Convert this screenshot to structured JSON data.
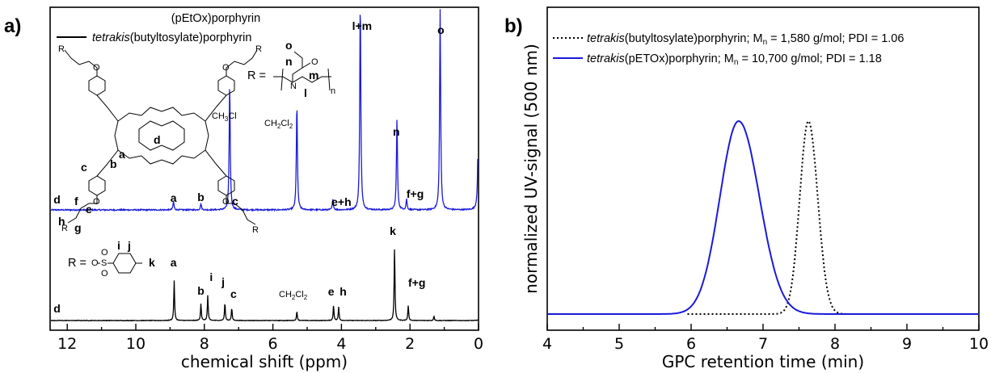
{
  "chart_data": [
    {
      "panel": "a)",
      "type": "line",
      "xlabel": "chemical shift (ppm)",
      "xlim": [
        12.5,
        0
      ],
      "x_ticks": [
        "12",
        "10",
        "8",
        "6",
        "4",
        "2",
        "0"
      ],
      "x_tick_values": [
        12,
        10,
        8,
        6,
        4,
        2,
        0
      ],
      "legend": [
        "(pEtOx)porphyrin",
        "tetrakis(butyltosylate)porphyrin"
      ],
      "series": [
        {
          "name": "(pEtOx)porphyrin",
          "color": "#1a1adb",
          "peaks": [
            {
              "ppm": 8.9,
              "height": 0.04,
              "label": "a"
            },
            {
              "ppm": 8.1,
              "height": 0.03,
              "label": "b"
            },
            {
              "ppm": 7.26,
              "height": 0.6,
              "label": "CH3Cl"
            },
            {
              "ppm": 5.3,
              "height": 0.51,
              "label": "CH2Cl2"
            },
            {
              "ppm": 4.25,
              "height": 0.05,
              "label": "e+h"
            },
            {
              "ppm": 3.45,
              "height": 1.0,
              "label": "l+m"
            },
            {
              "ppm": 2.38,
              "height": 0.43,
              "label": "n"
            },
            {
              "ppm": 2.1,
              "height": 0.05,
              "label": "f+g"
            },
            {
              "ppm": 1.12,
              "height": 0.95,
              "label": "o"
            },
            {
              "ppm": 0.0,
              "height": 0.65,
              "label": ""
            }
          ],
          "labels": [
            {
              "text": "d",
              "ppm": 12.3
            },
            {
              "text": "a",
              "ppm": 8.9
            },
            {
              "text": "b",
              "ppm": 8.1
            },
            {
              "text": "c",
              "ppm": 7.1
            },
            {
              "text": "e+h",
              "ppm": 4.0
            },
            {
              "text": "l+m",
              "ppm": 3.4
            },
            {
              "text": "n",
              "ppm": 2.4
            },
            {
              "text": "f+g",
              "ppm": 1.85
            },
            {
              "text": "o",
              "ppm": 1.1
            }
          ]
        },
        {
          "name": "tetrakis(butyltosylate)porphyrin",
          "color": "#000000",
          "peaks": [
            {
              "ppm": 8.88,
              "height": 0.44,
              "label": "a"
            },
            {
              "ppm": 8.1,
              "height": 0.19,
              "label": "b"
            },
            {
              "ppm": 7.9,
              "height": 0.28,
              "label": "i"
            },
            {
              "ppm": 7.4,
              "height": 0.2,
              "label": "j"
            },
            {
              "ppm": 7.2,
              "height": 0.14,
              "label": "c"
            },
            {
              "ppm": 5.3,
              "height": 0.1,
              "label": "CH2Cl2"
            },
            {
              "ppm": 4.23,
              "height": 0.17,
              "label": "e"
            },
            {
              "ppm": 4.08,
              "height": 0.15,
              "label": "h"
            },
            {
              "ppm": 2.45,
              "height": 0.82,
              "label": "k"
            },
            {
              "ppm": 2.05,
              "height": 0.17,
              "label": "f+g"
            },
            {
              "ppm": 1.3,
              "height": 0.05,
              "label": ""
            },
            {
              "ppm": 0.0,
              "height": 0.04,
              "label": ""
            }
          ],
          "labels": [
            {
              "text": "d",
              "ppm": 12.3
            },
            {
              "text": "a",
              "ppm": 8.9
            },
            {
              "text": "b",
              "ppm": 8.1
            },
            {
              "text": "i",
              "ppm": 7.8
            },
            {
              "text": "j",
              "ppm": 7.45
            },
            {
              "text": "c",
              "ppm": 7.15
            },
            {
              "text": "e",
              "ppm": 4.3
            },
            {
              "text": "h",
              "ppm": 3.95
            },
            {
              "text": "k",
              "ppm": 2.5
            },
            {
              "text": "f+g",
              "ppm": 1.8
            }
          ]
        }
      ],
      "annotations": {
        "r_blue": "R =",
        "r_black": "R =",
        "chcl3": "CH",
        "chcl3_sub": "3",
        "chcl3_tail": "Cl",
        "ch2cl2_a": "CH",
        "ch2cl2_sub1": "2",
        "ch2cl2_mid": "Cl",
        "ch2cl2_sub2": "2",
        "pox_o": "o",
        "pox_n": "n",
        "pox_m": "m",
        "pox_l": "l",
        "pox_n_sub": "n",
        "tos_i": "i",
        "tos_j": "j",
        "tos_k": "k",
        "porph_a": "a",
        "porph_b": "b",
        "porph_c": "c",
        "porph_d": "d",
        "porph_e": "e",
        "porph_f": "f",
        "porph_g": "g",
        "porph_h": "h"
      }
    },
    {
      "panel": "b)",
      "type": "line",
      "xlabel": "GPC retention time (min)",
      "ylabel": "normalized  UV-signal (500 nm)",
      "xlim": [
        4,
        10
      ],
      "ylim": [
        0,
        1.12
      ],
      "x_ticks": [
        "4",
        "5",
        "6",
        "7",
        "8",
        "9",
        "10"
      ],
      "x_tick_values": [
        4,
        5,
        6,
        7,
        8,
        9,
        10
      ],
      "series": [
        {
          "name_italic": "tetrakis",
          "name_rest": "(butyltosylate)porphyrin; M",
          "name_sub": "n",
          "name_tail": " = 1,580 g/mol; PDI = 1.06",
          "color": "#000000",
          "style": "dotted",
          "peak_x": 7.63,
          "peak_y": 1.0,
          "sigma_left": 0.12,
          "sigma_right": 0.13
        },
        {
          "name_italic": "tetrakis",
          "name_rest": "(pETOx)porphyrin; M",
          "name_sub": "n",
          "name_tail": " = 10,700 g/mol; PDI = 1.18",
          "color": "#1a1adb",
          "style": "solid",
          "peak_x": 6.66,
          "peak_y": 1.0,
          "sigma_left": 0.26,
          "sigma_right": 0.29
        }
      ]
    }
  ]
}
